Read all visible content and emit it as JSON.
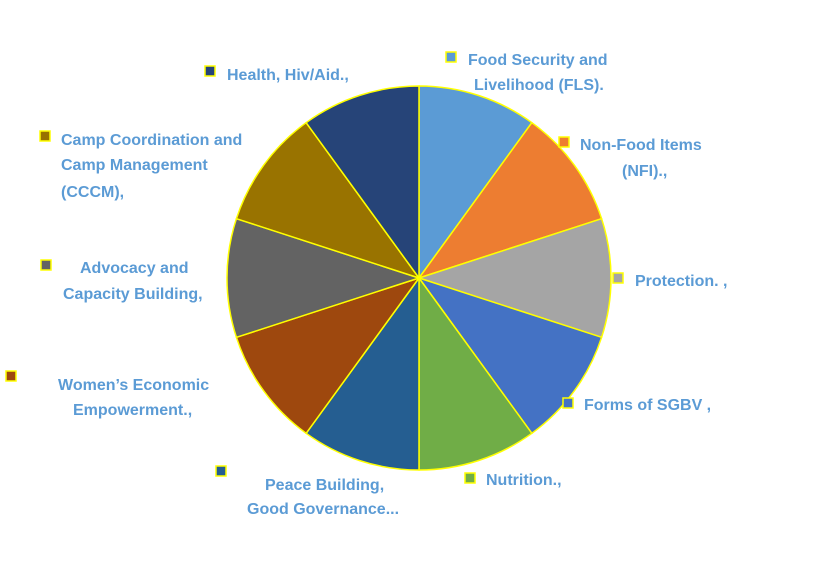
{
  "chart_data": {
    "type": "pie",
    "title": "",
    "slice_border_color": "#FFFF00",
    "label_color": "#5B9BD5",
    "series": [
      {
        "values": [
          1,
          1,
          1,
          1,
          1,
          1,
          1,
          1,
          1,
          1
        ],
        "slices": [
          {
            "label_lines": [
              "Food Security and",
              "Livelihood (FLS)."
            ],
            "color": "#5B9BD5"
          },
          {
            "label_lines": [
              "Non-Food Items",
              "(NFI).,"
            ],
            "color": "#ED7D31"
          },
          {
            "label_lines": [
              "Protection. ,"
            ],
            "color": "#A5A5A5"
          },
          {
            "label_lines": [
              "Forms of SGBV ,"
            ],
            "color": "#4472C4"
          },
          {
            "label_lines": [
              "Nutrition.,"
            ],
            "color": "#70AD47"
          },
          {
            "label_lines": [
              "Peace Building,",
              "Good Governance..."
            ],
            "color": "#255E91"
          },
          {
            "label_lines": [
              "Women’s Economic",
              "Empowerment.,"
            ],
            "color": "#9E480E"
          },
          {
            "label_lines": [
              "Advocacy and",
              "Capacity Building,"
            ],
            "color": "#636363"
          },
          {
            "label_lines": [
              "Camp Coordination and",
              "Camp Management",
              "(CCCM),"
            ],
            "color": "#997300"
          },
          {
            "label_lines": [
              "Health, Hiv/Aid.,"
            ],
            "color": "#264478"
          }
        ]
      }
    ]
  }
}
